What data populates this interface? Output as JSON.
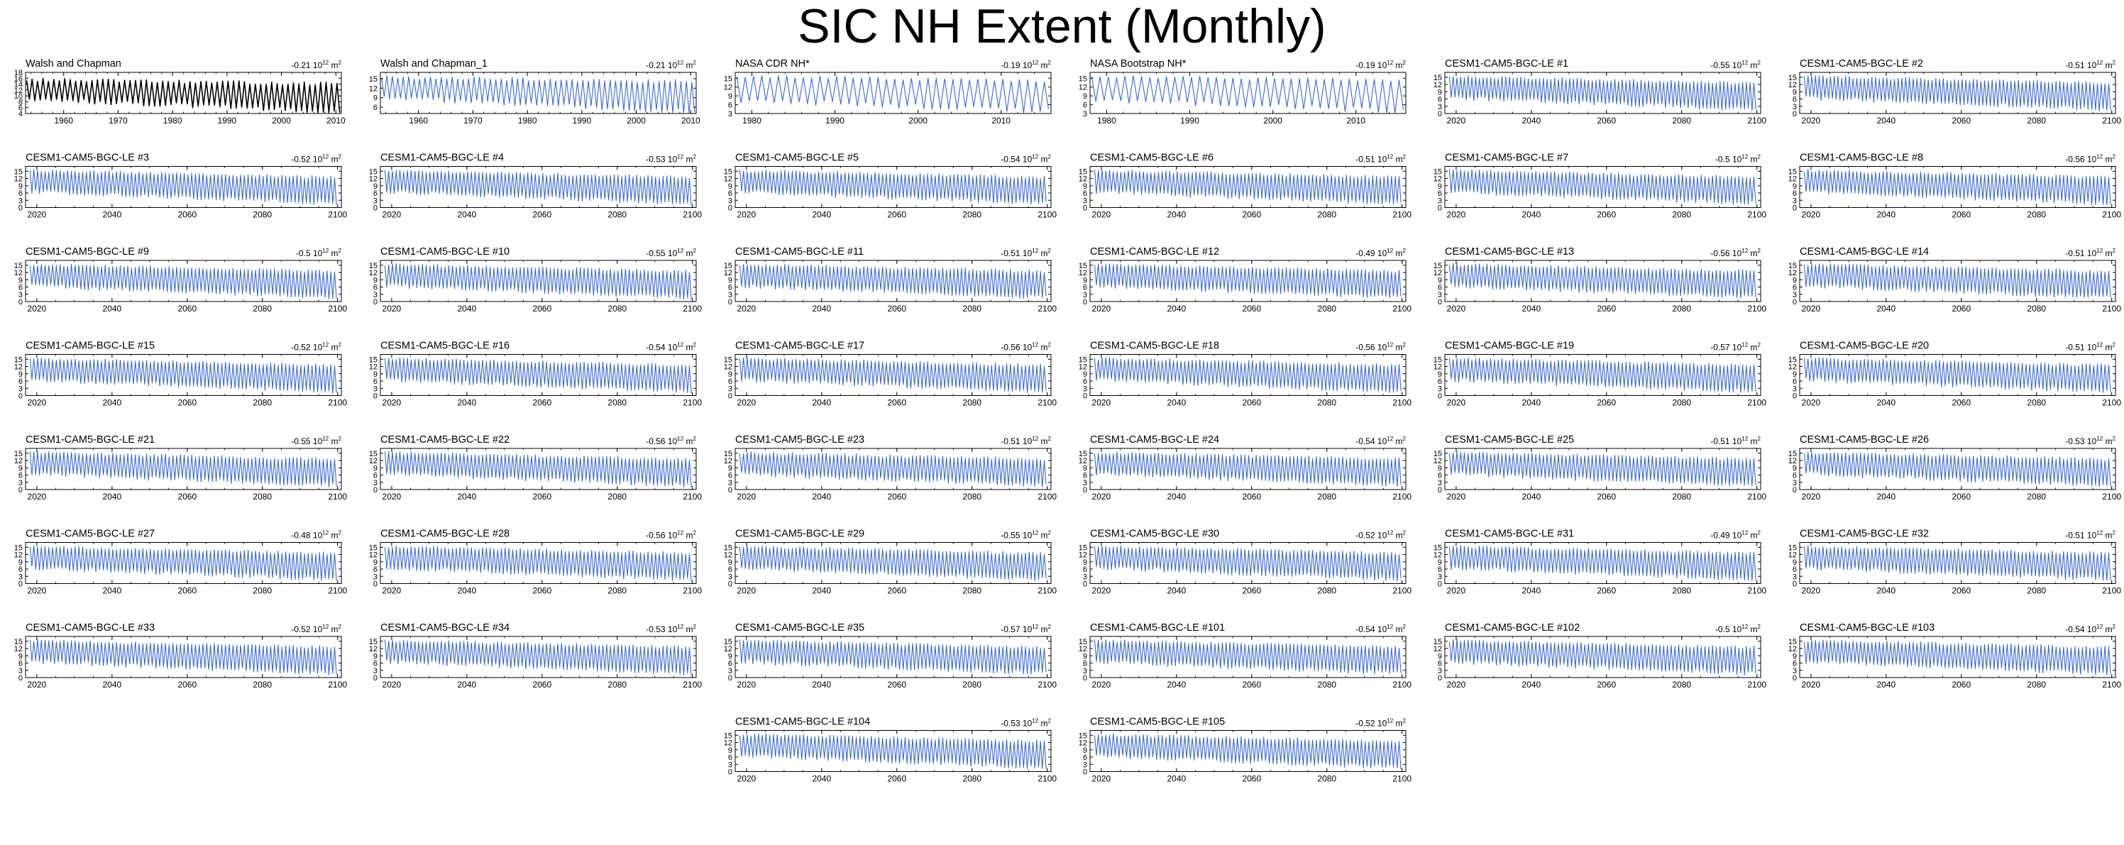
{
  "title": "SIC NH Extent (Monthly)",
  "colors": {
    "obs_line": "#000000",
    "model_line": "#3a66d8",
    "axis": "#000000"
  },
  "chart_data": [
    {
      "type": "line",
      "name": "Walsh and Chapman",
      "trend": "-0.21",
      "unit_exp": "12",
      "unit": "m",
      "unit_pow": "2",
      "xlim": [
        1953,
        2011
      ],
      "xticks": [
        "1960",
        "1970",
        "1980",
        "1990",
        "2000",
        "2010"
      ],
      "ylim": [
        4,
        18
      ],
      "yticks": [
        "4",
        "6",
        "8",
        "10",
        "12",
        "14",
        "16",
        "18"
      ],
      "series": {
        "start_year": 1953,
        "end_year": 2011,
        "mean_max": 15.5,
        "mean_min": 9.0,
        "trend_max_per_decade": -0.25,
        "trend_min_per_decade": -0.8
      }
    },
    {
      "type": "line",
      "name": "Walsh and Chapman_1",
      "trend": "-0.21",
      "unit_exp": "12",
      "unit": "m",
      "unit_pow": "2",
      "xlim": [
        1953,
        2011
      ],
      "xticks": [
        "1960",
        "1970",
        "1980",
        "1990",
        "2000",
        "2010"
      ],
      "ylim": [
        4,
        17
      ],
      "yticks": [
        "6",
        "9",
        "12",
        "15"
      ],
      "series": {
        "start_year": 1953,
        "end_year": 2011,
        "mean_max": 15.5,
        "mean_min": 9.0,
        "trend_max_per_decade": -0.25,
        "trend_min_per_decade": -0.8
      }
    },
    {
      "type": "line",
      "name": "NASA CDR NH*",
      "trend": "-0.19",
      "unit_exp": "12",
      "unit": "m",
      "unit_pow": "2",
      "xlim": [
        1978,
        2016
      ],
      "xticks": [
        "1980",
        "1990",
        "2000",
        "2010"
      ],
      "ylim": [
        3,
        17
      ],
      "yticks": [
        "3",
        "6",
        "9",
        "12",
        "15"
      ],
      "series": {
        "start_year": 1978,
        "end_year": 2016,
        "mean_max": 15.7,
        "mean_min": 7.5,
        "trend_max_per_decade": -0.4,
        "trend_min_per_decade": -1.0
      }
    },
    {
      "type": "line",
      "name": "NASA Bootstrap NH*",
      "trend": "-0.19",
      "unit_exp": "12",
      "unit": "m",
      "unit_pow": "2",
      "xlim": [
        1978,
        2016
      ],
      "xticks": [
        "1980",
        "1990",
        "2000",
        "2010"
      ],
      "ylim": [
        3,
        17
      ],
      "yticks": [
        "3",
        "6",
        "9",
        "12",
        "15"
      ],
      "series": {
        "start_year": 1978,
        "end_year": 2016,
        "mean_max": 15.7,
        "mean_min": 7.5,
        "trend_max_per_decade": -0.4,
        "trend_min_per_decade": -1.0
      }
    },
    {
      "type": "line",
      "name": "CESM1-CAM5-BGC-LE #1",
      "trend": "-0.55",
      "unit_exp": "12",
      "unit": "m",
      "unit_pow": "2"
    },
    {
      "type": "line",
      "name": "CESM1-CAM5-BGC-LE #2",
      "trend": "-0.51",
      "unit_exp": "12",
      "unit": "m",
      "unit_pow": "2"
    },
    {
      "type": "line",
      "name": "CESM1-CAM5-BGC-LE #3",
      "trend": "-0.52",
      "unit_exp": "12",
      "unit": "m",
      "unit_pow": "2"
    },
    {
      "type": "line",
      "name": "CESM1-CAM5-BGC-LE #4",
      "trend": "-0.53",
      "unit_exp": "12",
      "unit": "m",
      "unit_pow": "2"
    },
    {
      "type": "line",
      "name": "CESM1-CAM5-BGC-LE #5",
      "trend": "-0.54",
      "unit_exp": "12",
      "unit": "m",
      "unit_pow": "2"
    },
    {
      "type": "line",
      "name": "CESM1-CAM5-BGC-LE #6",
      "trend": "-0.51",
      "unit_exp": "12",
      "unit": "m",
      "unit_pow": "2"
    },
    {
      "type": "line",
      "name": "CESM1-CAM5-BGC-LE #7",
      "trend": "-0.5",
      "unit_exp": "12",
      "unit": "m",
      "unit_pow": "2"
    },
    {
      "type": "line",
      "name": "CESM1-CAM5-BGC-LE #8",
      "trend": "-0.56",
      "unit_exp": "12",
      "unit": "m",
      "unit_pow": "2"
    },
    {
      "type": "line",
      "name": "CESM1-CAM5-BGC-LE #9",
      "trend": "-0.5",
      "unit_exp": "12",
      "unit": "m",
      "unit_pow": "2"
    },
    {
      "type": "line",
      "name": "CESM1-CAM5-BGC-LE #10",
      "trend": "-0.55",
      "unit_exp": "12",
      "unit": "m",
      "unit_pow": "2"
    },
    {
      "type": "line",
      "name": "CESM1-CAM5-BGC-LE #11",
      "trend": "-0.51",
      "unit_exp": "12",
      "unit": "m",
      "unit_pow": "2"
    },
    {
      "type": "line",
      "name": "CESM1-CAM5-BGC-LE #12",
      "trend": "-0.49",
      "unit_exp": "12",
      "unit": "m",
      "unit_pow": "2"
    },
    {
      "type": "line",
      "name": "CESM1-CAM5-BGC-LE #13",
      "trend": "-0.56",
      "unit_exp": "12",
      "unit": "m",
      "unit_pow": "2"
    },
    {
      "type": "line",
      "name": "CESM1-CAM5-BGC-LE #14",
      "trend": "-0.51",
      "unit_exp": "12",
      "unit": "m",
      "unit_pow": "2"
    },
    {
      "type": "line",
      "name": "CESM1-CAM5-BGC-LE #15",
      "trend": "-0.52",
      "unit_exp": "12",
      "unit": "m",
      "unit_pow": "2"
    },
    {
      "type": "line",
      "name": "CESM1-CAM5-BGC-LE #16",
      "trend": "-0.54",
      "unit_exp": "12",
      "unit": "m",
      "unit_pow": "2"
    },
    {
      "type": "line",
      "name": "CESM1-CAM5-BGC-LE #17",
      "trend": "-0.56",
      "unit_exp": "12",
      "unit": "m",
      "unit_pow": "2"
    },
    {
      "type": "line",
      "name": "CESM1-CAM5-BGC-LE #18",
      "trend": "-0.56",
      "unit_exp": "12",
      "unit": "m",
      "unit_pow": "2"
    },
    {
      "type": "line",
      "name": "CESM1-CAM5-BGC-LE #19",
      "trend": "-0.57",
      "unit_exp": "12",
      "unit": "m",
      "unit_pow": "2"
    },
    {
      "type": "line",
      "name": "CESM1-CAM5-BGC-LE #20",
      "trend": "-0.51",
      "unit_exp": "12",
      "unit": "m",
      "unit_pow": "2"
    },
    {
      "type": "line",
      "name": "CESM1-CAM5-BGC-LE #21",
      "trend": "-0.55",
      "unit_exp": "12",
      "unit": "m",
      "unit_pow": "2"
    },
    {
      "type": "line",
      "name": "CESM1-CAM5-BGC-LE #22",
      "trend": "-0.56",
      "unit_exp": "12",
      "unit": "m",
      "unit_pow": "2"
    },
    {
      "type": "line",
      "name": "CESM1-CAM5-BGC-LE #23",
      "trend": "-0.51",
      "unit_exp": "12",
      "unit": "m",
      "unit_pow": "2"
    },
    {
      "type": "line",
      "name": "CESM1-CAM5-BGC-LE #24",
      "trend": "-0.54",
      "unit_exp": "12",
      "unit": "m",
      "unit_pow": "2"
    },
    {
      "type": "line",
      "name": "CESM1-CAM5-BGC-LE #25",
      "trend": "-0.51",
      "unit_exp": "12",
      "unit": "m",
      "unit_pow": "2"
    },
    {
      "type": "line",
      "name": "CESM1-CAM5-BGC-LE #26",
      "trend": "-0.53",
      "unit_exp": "12",
      "unit": "m",
      "unit_pow": "2"
    },
    {
      "type": "line",
      "name": "CESM1-CAM5-BGC-LE #27",
      "trend": "-0.48",
      "unit_exp": "12",
      "unit": "m",
      "unit_pow": "2"
    },
    {
      "type": "line",
      "name": "CESM1-CAM5-BGC-LE #28",
      "trend": "-0.56",
      "unit_exp": "12",
      "unit": "m",
      "unit_pow": "2"
    },
    {
      "type": "line",
      "name": "CESM1-CAM5-BGC-LE #29",
      "trend": "-0.55",
      "unit_exp": "12",
      "unit": "m",
      "unit_pow": "2"
    },
    {
      "type": "line",
      "name": "CESM1-CAM5-BGC-LE #30",
      "trend": "-0.52",
      "unit_exp": "12",
      "unit": "m",
      "unit_pow": "2"
    },
    {
      "type": "line",
      "name": "CESM1-CAM5-BGC-LE #31",
      "trend": "-0.49",
      "unit_exp": "12",
      "unit": "m",
      "unit_pow": "2"
    },
    {
      "type": "line",
      "name": "CESM1-CAM5-BGC-LE #32",
      "trend": "-0.51",
      "unit_exp": "12",
      "unit": "m",
      "unit_pow": "2"
    },
    {
      "type": "line",
      "name": "CESM1-CAM5-BGC-LE #33",
      "trend": "-0.52",
      "unit_exp": "12",
      "unit": "m",
      "unit_pow": "2"
    },
    {
      "type": "line",
      "name": "CESM1-CAM5-BGC-LE #34",
      "trend": "-0.53",
      "unit_exp": "12",
      "unit": "m",
      "unit_pow": "2"
    },
    {
      "type": "line",
      "name": "CESM1-CAM5-BGC-LE #35",
      "trend": "-0.57",
      "unit_exp": "12",
      "unit": "m",
      "unit_pow": "2"
    },
    {
      "type": "line",
      "name": "CESM1-CAM5-BGC-LE #101",
      "trend": "-0.54",
      "unit_exp": "12",
      "unit": "m",
      "unit_pow": "2"
    },
    {
      "type": "line",
      "name": "CESM1-CAM5-BGC-LE #102",
      "trend": "-0.5",
      "unit_exp": "12",
      "unit": "m",
      "unit_pow": "2"
    },
    {
      "type": "line",
      "name": "CESM1-CAM5-BGC-LE #103",
      "trend": "-0.54",
      "unit_exp": "12",
      "unit": "m",
      "unit_pow": "2"
    },
    {
      "type": "line",
      "name": "CESM1-CAM5-BGC-LE #104",
      "trend": "-0.53",
      "unit_exp": "12",
      "unit": "m",
      "unit_pow": "2"
    },
    {
      "type": "line",
      "name": "CESM1-CAM5-BGC-LE #105",
      "trend": "-0.52",
      "unit_exp": "12",
      "unit": "m",
      "unit_pow": "2"
    }
  ],
  "model_defaults": {
    "xlim": [
      2017,
      2101
    ],
    "xticks": [
      "2020",
      "2040",
      "2060",
      "2080",
      "2100"
    ],
    "ylim": [
      0,
      17
    ],
    "yticks": [
      "0",
      "3",
      "6",
      "9",
      "12",
      "15"
    ],
    "series": {
      "start_year": 2018,
      "end_year": 2100,
      "mean_max": 15.3,
      "mean_min": 6.5,
      "trend_max_per_decade": -0.35,
      "trend_min_per_decade": -0.6
    }
  }
}
